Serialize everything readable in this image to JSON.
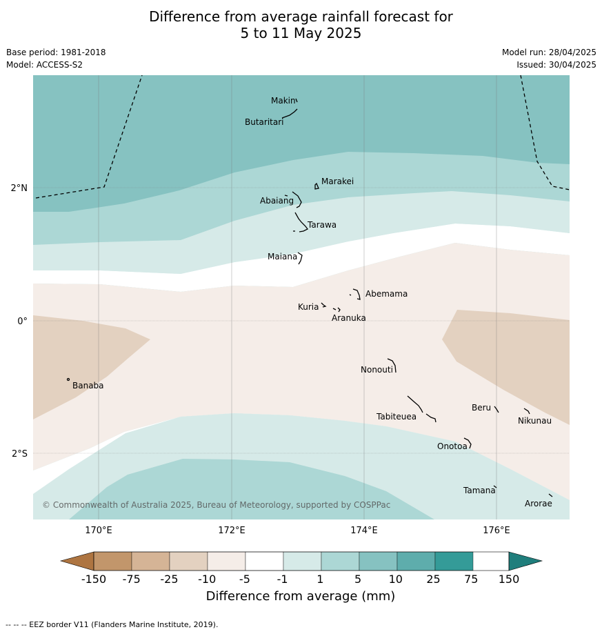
{
  "header": {
    "title_line1": "Difference from average rainfall forecast for",
    "title_line2": "5 to 11 May 2025",
    "base_period": "Base period: 1981-2018",
    "model": "Model: ACCESS-S2",
    "model_run": "Model run: 28/04/2025",
    "issued": "Issued: 30/04/2025"
  },
  "map": {
    "lat_labels": [
      "2°N",
      "0°",
      "2°S"
    ],
    "lon_labels": [
      "170°E",
      "172°E",
      "174°E",
      "176°E"
    ],
    "places": [
      "Makin",
      "Butaritari",
      "Marakei",
      "Abaiang",
      "Tarawa",
      "Maiana",
      "Abemama",
      "Kuria",
      "Aranuka",
      "Banaba",
      "Nonouti",
      "Tabiteuea",
      "Beru",
      "Nikunau",
      "Onotoa",
      "Tamana",
      "Arorae"
    ],
    "copyright": "© Commonwealth of Australia 2025, Bureau of Meteorology, supported by COSPPac"
  },
  "legend": {
    "title": "Difference from average (mm)",
    "ticks": [
      "-150",
      "-75",
      "-25",
      "-10",
      "-5",
      "-1",
      "1",
      "5",
      "10",
      "25",
      "75",
      "150"
    ],
    "colors": [
      "#ae7541",
      "#c2966b",
      "#d5b496",
      "#e3d1c0",
      "#f5ede8",
      "#ffffff",
      "#d6eae8",
      "#acd7d5",
      "#86c2c1",
      "#5eadac",
      "#349b98",
      "#1f7e7c"
    ]
  },
  "footer": {
    "eez_note": "-- -- -- EEZ border V11 (Flanders Marine Institute, 2019)."
  }
}
